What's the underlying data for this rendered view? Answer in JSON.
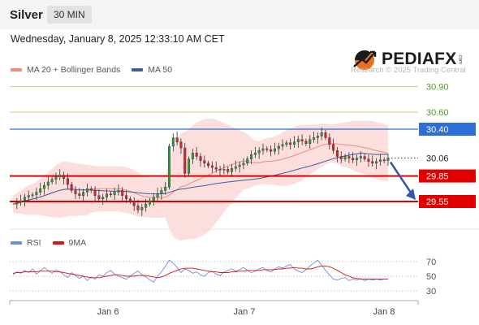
{
  "header": {
    "symbol": "Silver",
    "timeframe": "30 MIN"
  },
  "datetime": "Wednesday, January 8, 2025 12:33:10 AM CET",
  "legend_main": [
    {
      "label": "MA 20 + Bollinger Bands",
      "color": "#f08a82"
    },
    {
      "label": "MA 50",
      "color": "#3a5f9c"
    }
  ],
  "legend_rsi": [
    {
      "label": "RSI",
      "color": "#6b8fd8"
    },
    {
      "label": "9MA",
      "color": "#e01010"
    }
  ],
  "brand": {
    "name": "PEDIAFX",
    "tm": ".com",
    "copyright": "Research © 2025 Trading Central"
  },
  "colors": {
    "up": "#2e9e3c",
    "down": "#d9232b",
    "support": "#e00000",
    "resistance": "#2d6fd6",
    "target": "#b5d88a",
    "ma50": "#3a5f9c",
    "ma20": "#f08a82",
    "bands": "#fbd3d0",
    "arrow": "#2e5aa8"
  },
  "chart_data": {
    "type": "candlestick",
    "timeframe": "30 MIN",
    "x_ticks": [
      "Jan 6",
      "Jan 7",
      "Jan 8"
    ],
    "price_levels": [
      {
        "value": 30.9,
        "label": "30.90",
        "kind": "target"
      },
      {
        "value": 30.6,
        "label": "30.60",
        "kind": "target"
      },
      {
        "value": 30.4,
        "label": "30.40",
        "kind": "resistance"
      },
      {
        "value": 30.06,
        "label": "30.06",
        "kind": "last"
      },
      {
        "value": 29.85,
        "label": "29.85",
        "kind": "support"
      },
      {
        "value": 29.55,
        "label": "29.55",
        "kind": "support"
      }
    ],
    "expected_direction": "down",
    "close_path": [
      29.52,
      29.54,
      29.56,
      29.6,
      29.62,
      29.63,
      29.66,
      29.7,
      29.74,
      29.78,
      29.81,
      29.84,
      29.86,
      29.82,
      29.75,
      29.68,
      29.64,
      29.62,
      29.66,
      29.7,
      29.68,
      29.62,
      29.58,
      29.6,
      29.64,
      29.63,
      29.66,
      29.68,
      29.62,
      29.58,
      29.55,
      29.5,
      29.45,
      29.48,
      29.52,
      29.56,
      29.6,
      29.64,
      29.68,
      29.72,
      30.2,
      30.3,
      30.25,
      30.18,
      29.88,
      30.05,
      30.12,
      30.08,
      30.03,
      30.0,
      29.97,
      29.95,
      29.93,
      29.92,
      29.93,
      29.9,
      29.94,
      29.96,
      29.98,
      30.0,
      30.05,
      30.1,
      30.12,
      30.15,
      30.17,
      30.16,
      30.14,
      30.17,
      30.2,
      30.22,
      30.24,
      30.22,
      30.25,
      30.28,
      30.26,
      30.23,
      30.28,
      30.3,
      30.32,
      30.36,
      30.3,
      30.22,
      30.15,
      30.08,
      30.05,
      30.08,
      30.06,
      30.04,
      30.06,
      30.08,
      30.05,
      30.02,
      30.0,
      30.02,
      30.04,
      30.03,
      30.06
    ],
    "rsi": {
      "levels": [
        70,
        50,
        30
      ],
      "values": [
        52,
        56,
        54,
        58,
        55,
        60,
        53,
        57,
        62,
        58,
        54,
        59,
        56,
        52,
        48,
        55,
        51,
        47,
        50,
        44,
        49,
        46,
        52,
        50,
        55,
        58,
        53,
        50,
        48,
        46,
        50,
        54,
        57,
        52,
        49,
        45,
        42,
        50,
        56,
        64,
        72,
        68,
        62,
        55,
        60,
        58,
        54,
        56,
        52,
        50,
        55,
        57,
        53,
        51,
        56,
        58,
        60,
        57,
        59,
        62,
        58,
        55,
        57,
        60,
        62,
        58,
        56,
        60,
        63,
        61,
        64,
        66,
        60,
        57,
        55,
        59,
        64,
        68,
        72,
        65,
        58,
        52,
        46,
        45,
        47,
        48,
        44,
        46,
        45,
        47,
        44,
        46,
        45,
        46,
        45,
        46,
        46
      ],
      "ma9": [
        54,
        55,
        55,
        56,
        56,
        56,
        56,
        57,
        57,
        57,
        57,
        56,
        56,
        55,
        54,
        53,
        52,
        51,
        50,
        49,
        48,
        48,
        48,
        49,
        50,
        51,
        52,
        52,
        51,
        50,
        50,
        50,
        51,
        51,
        51,
        50,
        49,
        48,
        49,
        51,
        54,
        56,
        58,
        60,
        61,
        61,
        61,
        60,
        59,
        58,
        57,
        56,
        56,
        55,
        55,
        55,
        56,
        56,
        57,
        57,
        58,
        58,
        58,
        58,
        59,
        59,
        59,
        59,
        60,
        60,
        61,
        61,
        62,
        61,
        61,
        60,
        60,
        61,
        63,
        64,
        64,
        63,
        61,
        58,
        55,
        52,
        50,
        48,
        47,
        46,
        46,
        46,
        46,
        46,
        46,
        46,
        46
      ]
    }
  }
}
